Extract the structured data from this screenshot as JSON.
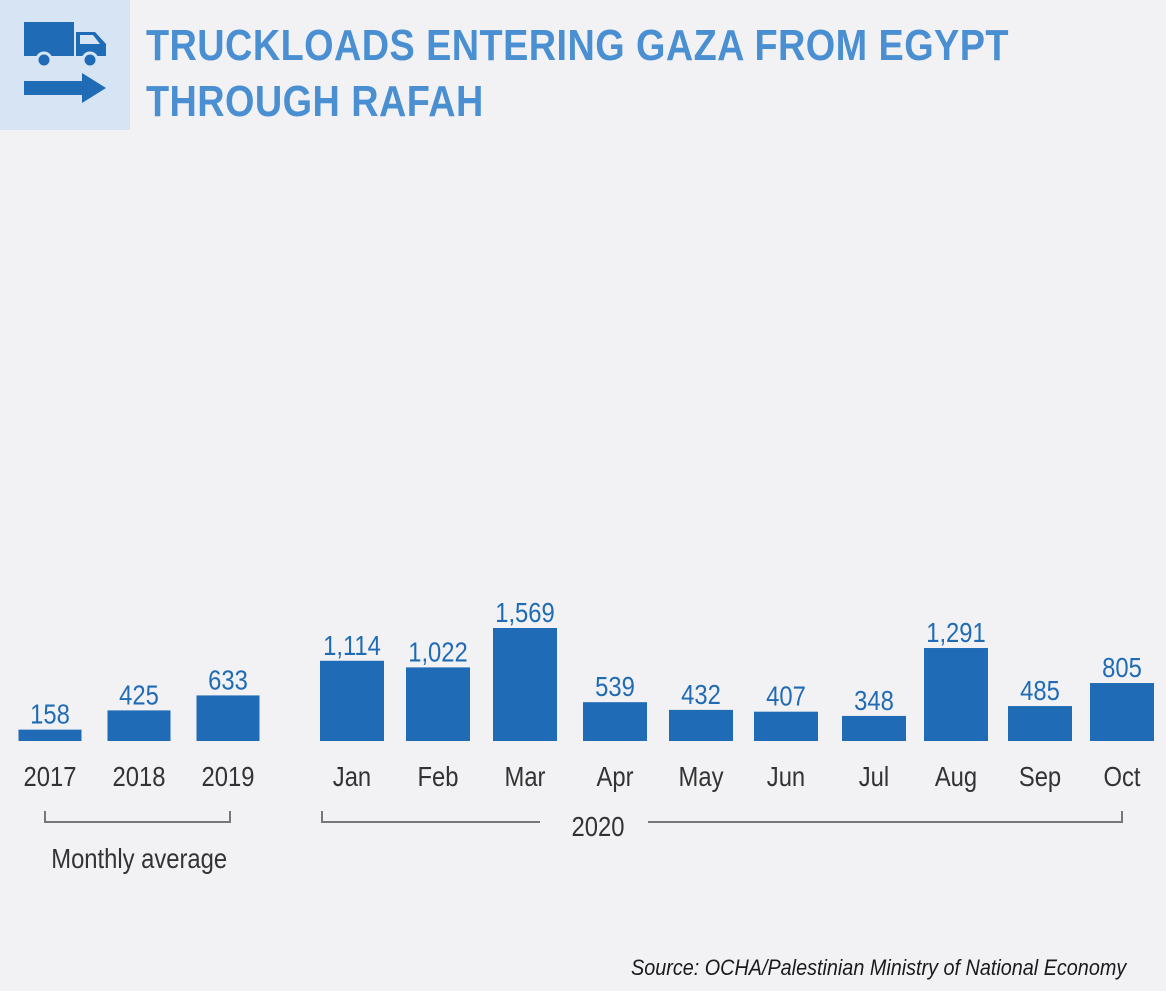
{
  "header": {
    "title_line1": "TRUCKLOADS ENTERING GAZA FROM EGYPT",
    "title_line2": "THROUGH RAFAH",
    "icon": "truck-arrow-icon"
  },
  "colors": {
    "bar": "#1f6bb5",
    "value_label": "#1f6bb5",
    "title": "#4a8fd1",
    "icon_bg": "#d6e4f3",
    "axis_text": "#333333",
    "bracket": "#777777"
  },
  "chart_data": {
    "type": "bar",
    "title": "TRUCKLOADS ENTERING GAZA FROM EGYPT THROUGH RAFAH",
    "ylim": [
      0,
      1600
    ],
    "groups": [
      {
        "label": "Monthly average",
        "categories": [
          "2017",
          "2018",
          "2019"
        ],
        "values": [
          158,
          425,
          633
        ],
        "value_labels": [
          "158",
          "425",
          "633"
        ]
      },
      {
        "label": "2020",
        "categories": [
          "Jan",
          "Feb",
          "Mar",
          "Apr",
          "May",
          "Jun",
          "Jul",
          "Aug",
          "Sep",
          "Oct"
        ],
        "values": [
          1114,
          1022,
          1569,
          539,
          432,
          407,
          348,
          1291,
          485,
          805
        ],
        "value_labels": [
          "1,114",
          "1,022",
          "1,569",
          "539",
          "432",
          "407",
          "348",
          "1,291",
          "485",
          "805"
        ]
      }
    ]
  },
  "source": "Source: OCHA/Palestinian Ministry of National Economy"
}
